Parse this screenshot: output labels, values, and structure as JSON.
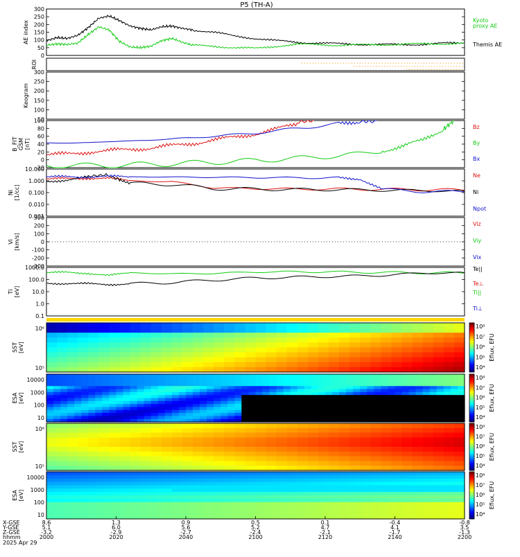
{
  "title": "P5 (TH-A)",
  "colors": {
    "black": "#000000",
    "green": "#11cc11",
    "red": "#e01010",
    "blue": "#1010cc",
    "orange": "#ff8800",
    "yellow": "#ffd700"
  },
  "chart_data": [
    {
      "panel": "ae",
      "type": "line",
      "ylabel": "AE index",
      "ylim": [
        0,
        300
      ],
      "yticks": [
        "300",
        "250",
        "200",
        "150",
        "100",
        "50",
        "0"
      ],
      "legend": [
        "Kyoto",
        "proxy AE",
        "Themis AE"
      ],
      "x_unit": "minutes after 2000",
      "series": [
        {
          "name": "Themis AE",
          "color": "black",
          "x": [
            0,
            5,
            10,
            15,
            20,
            25,
            30,
            35,
            40,
            45,
            50,
            55,
            60,
            65,
            70,
            80,
            90,
            100,
            110,
            120,
            130,
            140,
            150,
            160,
            170,
            180,
            190,
            200
          ],
          "y": [
            95,
            115,
            110,
            130,
            180,
            240,
            255,
            225,
            190,
            175,
            165,
            185,
            190,
            175,
            165,
            150,
            125,
            110,
            95,
            85,
            80,
            75,
            72,
            70,
            70,
            72,
            78,
            82
          ]
        },
        {
          "name": "Kyoto proxy AE",
          "color": "green",
          "x": [
            0,
            5,
            10,
            15,
            20,
            25,
            30,
            35,
            40,
            45,
            50,
            55,
            60,
            65,
            70,
            80,
            90,
            100,
            110,
            120,
            130,
            140,
            150,
            160,
            170,
            180,
            190,
            200
          ],
          "y": [
            65,
            75,
            70,
            80,
            135,
            185,
            165,
            90,
            55,
            50,
            60,
            95,
            110,
            85,
            65,
            60,
            50,
            45,
            60,
            72,
            70,
            66,
            68,
            70,
            72,
            75,
            76,
            78
          ]
        }
      ]
    },
    {
      "panel": "roi",
      "type": "line",
      "ylabel": "ROI",
      "note_series": [
        {
          "color": "orange",
          "x_start": 122,
          "x_end": 200
        }
      ]
    },
    {
      "panel": "keogram",
      "type": "heatmap",
      "ylabel": "Keogram",
      "yticks": [
        "300",
        "250",
        "200",
        "150",
        "100",
        "50"
      ]
    },
    {
      "panel": "bfield",
      "type": "line",
      "ylabel": [
        "B_FIT",
        "GSM",
        "[nT]"
      ],
      "ylim": [
        -20,
        100
      ],
      "yticks": [
        "100",
        "80",
        "60",
        "40",
        "20",
        "0",
        "-20"
      ],
      "legend": [
        "Bz",
        "By",
        "Bx"
      ],
      "series": [
        {
          "name": "Bz",
          "color": "red",
          "x": [
            0,
            10,
            20,
            30,
            40,
            50,
            60,
            70,
            80,
            90,
            100,
            110,
            120,
            128
          ],
          "y": [
            12,
            15,
            20,
            23,
            27,
            30,
            36,
            42,
            50,
            58,
            66,
            78,
            92,
            102
          ]
        },
        {
          "name": "By",
          "color": "green",
          "x": [
            0,
            20,
            40,
            60,
            80,
            100,
            120,
            140,
            160,
            170,
            180,
            190,
            195
          ],
          "y": [
            -14,
            -15,
            -13,
            -10,
            -6,
            -2,
            4,
            10,
            22,
            34,
            50,
            78,
            100
          ]
        },
        {
          "name": "Bx",
          "color": "blue",
          "x": [
            0,
            20,
            40,
            60,
            80,
            100,
            120,
            140,
            150,
            158
          ],
          "y": [
            42,
            44,
            48,
            53,
            60,
            68,
            80,
            92,
            98,
            102
          ]
        }
      ]
    },
    {
      "panel": "density",
      "type": "line",
      "ylabel": [
        "Ni",
        "[1/cc]"
      ],
      "yscale": "log",
      "ylim": [
        0.001,
        10
      ],
      "yticks": [
        "10.000",
        "1.000",
        "0.100",
        "0.010",
        "0.001"
      ],
      "legend": [
        "Ne",
        "Ni",
        "Npot"
      ],
      "series": [
        {
          "name": "Ne",
          "color": "red",
          "x": [
            0,
            10,
            20,
            30,
            40,
            60,
            80,
            100,
            120,
            140,
            160,
            180,
            200
          ],
          "y": [
            1.4,
            1.5,
            1.7,
            1.6,
            1.0,
            0.85,
            0.25,
            0.22,
            0.2,
            0.2,
            0.19,
            0.18,
            0.16
          ]
        },
        {
          "name": "Ni",
          "color": "black",
          "x": [
            0,
            10,
            20,
            28,
            35,
            40,
            60,
            80,
            100,
            120,
            140,
            160,
            180,
            200
          ],
          "y": [
            0.9,
            1.2,
            2.0,
            3.5,
            1.2,
            0.6,
            0.5,
            0.22,
            0.2,
            0.18,
            0.18,
            0.16,
            0.15,
            0.13
          ]
        },
        {
          "name": "Npot",
          "color": "blue",
          "x": [
            0,
            10,
            20,
            30,
            40,
            60,
            80,
            100,
            120,
            140,
            150,
            160,
            180,
            200
          ],
          "y": [
            2.0,
            2.2,
            2.2,
            2.3,
            2.2,
            2.1,
            2.0,
            1.9,
            1.8,
            1.8,
            1.5,
            0.2,
            0.12,
            0.12
          ]
        }
      ]
    },
    {
      "panel": "velocity",
      "type": "line",
      "ylabel": [
        "Vi",
        "[km/s]"
      ],
      "ylim": [
        -300,
        300
      ],
      "yticks": [
        "300",
        "200",
        "100",
        "0",
        "-100",
        "-200",
        "-300"
      ],
      "legend": [
        "Viz",
        "Viy",
        "Vix"
      ]
    },
    {
      "panel": "temperature",
      "type": "line",
      "ylabel": [
        "Ti",
        "[eV]"
      ],
      "yscale": "log",
      "ylim": [
        0.05,
        5000
      ],
      "yticks": [
        "1000.0",
        "100.0",
        "10.0",
        "1.0",
        "0.1"
      ],
      "legend": [
        "Te||",
        "Te⊥",
        "Ti||",
        "Ti⊥"
      ],
      "series": [
        {
          "name": "Ti||",
          "color": "green",
          "x": [
            0,
            10,
            20,
            30,
            40,
            60,
            80,
            100,
            120,
            140,
            160,
            180,
            200
          ],
          "y": [
            1400,
            1500,
            1300,
            700,
            1400,
            1100,
            1200,
            1700,
            1800,
            1700,
            1500,
            1400,
            1300
          ]
        },
        {
          "name": "Te||",
          "color": "black",
          "x": [
            0,
            10,
            20,
            30,
            40,
            60,
            80,
            100,
            120,
            140,
            160,
            180,
            200
          ],
          "y": [
            120,
            110,
            100,
            90,
            100,
            140,
            250,
            400,
            500,
            600,
            750,
            1300,
            1400
          ]
        }
      ]
    },
    {
      "panel": "sst_ion",
      "type": "heatmap",
      "ylabel": [
        "SST",
        "[eV]"
      ],
      "yticks": [
        "10⁶",
        "10⁵"
      ],
      "colorbar_label": "Eflux, EFU",
      "colorbar_ticks": [
        "10⁸",
        "10⁷",
        "10⁶",
        "10⁵",
        "10⁴"
      ]
    },
    {
      "panel": "esa_ion",
      "type": "heatmap",
      "ylabel": [
        "ESA",
        "[eV]"
      ],
      "yticks": [
        "10000",
        "1000",
        "100",
        "10"
      ],
      "colorbar_label": "Eflux, EFU",
      "colorbar_ticks": [
        "10⁸",
        "10⁷",
        "10⁶",
        "10⁵",
        "10⁴"
      ]
    },
    {
      "panel": "sst_elec",
      "type": "heatmap",
      "ylabel": [
        "SST",
        "[eV]"
      ],
      "yticks": [
        "10⁶",
        "10⁵"
      ],
      "colorbar_label": "Eflux, EFU",
      "colorbar_ticks": [
        "10⁸",
        "10⁷",
        "10⁶",
        "10⁵",
        "10⁴"
      ]
    },
    {
      "panel": "esa_elec",
      "type": "heatmap",
      "ylabel": [
        "ESA",
        "[eV]"
      ],
      "yticks": [
        "10000",
        "1000",
        "100",
        "10"
      ],
      "colorbar_label": "Eflux, EFU",
      "colorbar_ticks": [
        "10⁸",
        "10⁷",
        "10⁶",
        "10⁵",
        "10⁴"
      ]
    }
  ],
  "x_axis": {
    "row_labels": [
      "X-GSE",
      "Y-GSE",
      "Z-GSE",
      "hhmm",
      "2025 Apr 29"
    ],
    "ticks": [
      {
        "x": 0,
        "rows": [
          "8.6",
          "5.1",
          "-3.2",
          "2000"
        ]
      },
      {
        "x": 20,
        "rows": [
          "1.3",
          "6.0",
          "-2.9",
          "2020"
        ]
      },
      {
        "x": 40,
        "rows": [
          "0.9",
          "5.6",
          "-2.7",
          "2040"
        ]
      },
      {
        "x": 60,
        "rows": [
          "0.5",
          "5.2",
          "-2.4",
          "2100"
        ]
      },
      {
        "x": 80,
        "rows": [
          "0.1",
          "4.7",
          "-2.1",
          "2120"
        ]
      },
      {
        "x": 100,
        "rows": [
          "-0.4",
          "4.1",
          "-1.7",
          "2140"
        ]
      },
      {
        "x": 120,
        "rows": [
          "-0.8",
          "3.5",
          "-1.3",
          "2200"
        ]
      }
    ]
  }
}
